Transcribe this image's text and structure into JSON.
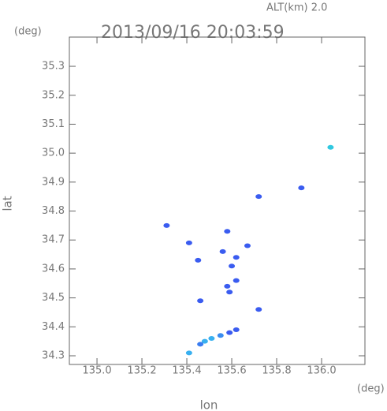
{
  "chart_data": {
    "type": "scatter",
    "title": "2013/09/16 20:03:59",
    "subtitle": "ALT(km) 2.0",
    "x_label": "lon",
    "y_label": "lat",
    "x_unit": "(deg)",
    "y_unit": "(deg)",
    "xlim": [
      134.877,
      136.193
    ],
    "ylim": [
      34.27,
      35.401
    ],
    "xticks": [
      {
        "value": 135.0,
        "label": "135.0"
      },
      135.2,
      135.4,
      135.6,
      135.8,
      {
        "value": 136.0,
        "label": "136.0"
      }
    ],
    "yticks": [
      34.3,
      34.4,
      34.5,
      34.6,
      34.7,
      34.8,
      34.9,
      {
        "value": 35.0,
        "label": "35.0"
      },
      35.1,
      35.2,
      35.3
    ],
    "x": [
      136.04,
      135.91,
      135.72,
      135.31,
      135.41,
      135.45,
      135.58,
      135.56,
      135.62,
      135.6,
      135.67,
      135.62,
      135.58,
      135.59,
      135.46,
      135.72,
      135.62,
      135.59,
      135.55,
      135.51,
      135.48,
      135.46,
      135.41
    ],
    "values": [
      35.02,
      34.88,
      34.85,
      34.75,
      34.69,
      34.63,
      34.73,
      34.66,
      34.64,
      34.61,
      34.68,
      34.56,
      34.54,
      34.52,
      34.49,
      34.46,
      34.39,
      34.38,
      34.37,
      34.36,
      34.35,
      34.34,
      34.31
    ],
    "colors": [
      "#30c8e0",
      "#3a5cf0",
      "#3a5cf0",
      "#3a5cf0",
      "#3a5cf0",
      "#3a5cf0",
      "#3a5cf0",
      "#3a5cf0",
      "#3a5cf0",
      "#3a5cf0",
      "#3a5cf0",
      "#3a5cf0",
      "#3a5cf0",
      "#3a5cf0",
      "#3a5cf0",
      "#3a5cf0",
      "#3a5cf0",
      "#3a5cf0",
      "#3a8cf0",
      "#38b0f0",
      "#38b0f0",
      "#3a7cf0",
      "#38b0f0"
    ]
  }
}
